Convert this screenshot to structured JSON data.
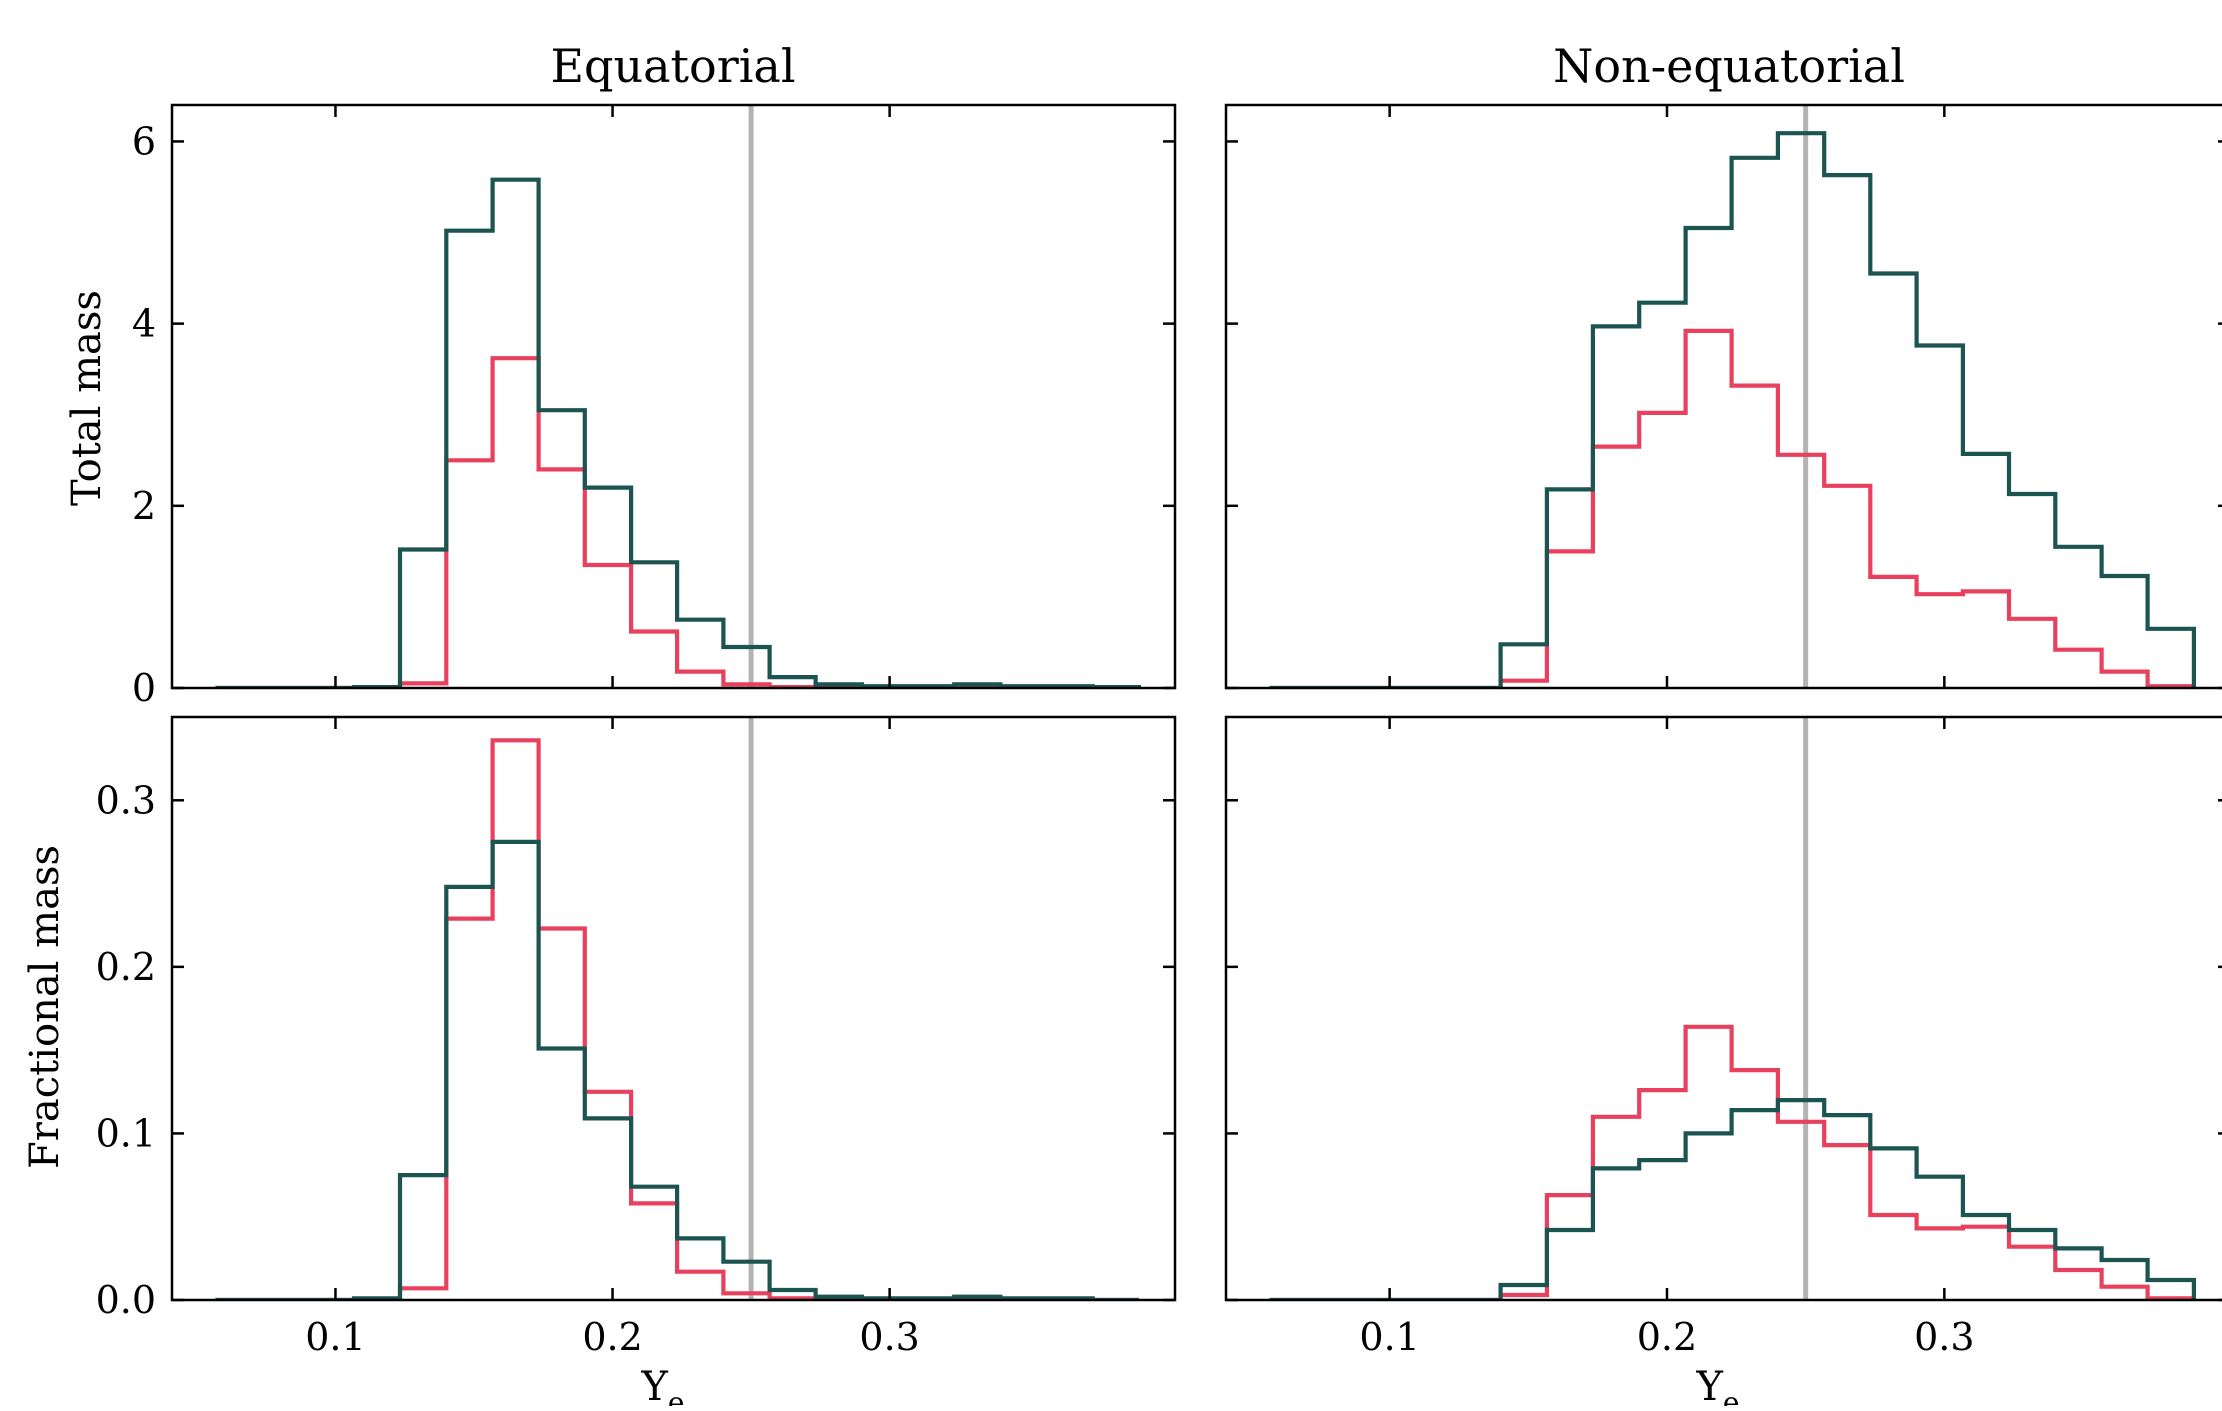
{
  "colors": {
    "series_a": "#e8405d",
    "series_b": "#1c5452",
    "reference_line": "#b3b3b3",
    "axes": "#000000"
  },
  "chart_data": [
    {
      "type": "step-histogram",
      "title": "Equatorial",
      "xlabel": "",
      "ylabel": "Total mass",
      "xlim": [
        0.041,
        0.403
      ],
      "ylim": [
        0,
        6.4
      ],
      "xticks": [
        0.1,
        0.2,
        0.3
      ],
      "yticks": [
        0,
        2,
        4,
        6
      ],
      "ytick_labels": [
        "0",
        "2",
        "4",
        "6"
      ],
      "vline_x": 0.25,
      "bin_edges": [
        0.0567,
        0.0733,
        0.09,
        0.1067,
        0.1233,
        0.14,
        0.1567,
        0.1733,
        0.19,
        0.2067,
        0.2233,
        0.24,
        0.2567,
        0.2733,
        0.29,
        0.3067,
        0.3233,
        0.34,
        0.3567,
        0.3733,
        0.39
      ],
      "series": [
        {
          "values": [
            0,
            0,
            0,
            0,
            0.05,
            2.5,
            3.62,
            2.4,
            1.35,
            0.62,
            0.18,
            0.04,
            0.01,
            0,
            0,
            0,
            0,
            0,
            0,
            0
          ]
        },
        {
          "values": [
            0,
            0,
            0,
            0.01,
            1.52,
            5.02,
            5.58,
            3.05,
            2.2,
            1.38,
            0.75,
            0.45,
            0.12,
            0.04,
            0.02,
            0.02,
            0.04,
            0.02,
            0.02,
            0.01
          ]
        }
      ]
    },
    {
      "type": "step-histogram",
      "title": "Non-equatorial",
      "xlabel": "",
      "ylabel": "",
      "xlim": [
        0.041,
        0.403
      ],
      "ylim": [
        0,
        6.4
      ],
      "xticks": [
        0.1,
        0.2,
        0.3
      ],
      "yticks": [
        0,
        2,
        4,
        6
      ],
      "vline_x": 0.25,
      "bin_edges": [
        0.0567,
        0.0733,
        0.09,
        0.1067,
        0.1233,
        0.14,
        0.1567,
        0.1733,
        0.19,
        0.2067,
        0.2233,
        0.24,
        0.2567,
        0.2733,
        0.29,
        0.3067,
        0.3233,
        0.34,
        0.3567,
        0.3733,
        0.39
      ],
      "series": [
        {
          "values": [
            0,
            0,
            0,
            0,
            0,
            0.08,
            1.5,
            2.65,
            3.02,
            3.92,
            3.32,
            2.56,
            2.22,
            1.22,
            1.03,
            1.06,
            0.76,
            0.42,
            0.18,
            0.02
          ]
        },
        {
          "values": [
            0,
            0,
            0,
            0,
            0,
            0.48,
            2.18,
            3.97,
            4.23,
            5.05,
            5.82,
            6.09,
            5.63,
            4.55,
            3.76,
            2.57,
            2.13,
            1.55,
            1.23,
            0.65
          ]
        }
      ]
    },
    {
      "type": "step-histogram",
      "title": "",
      "xlabel": "Ye",
      "ylabel": "Fractional mass",
      "xlim": [
        0.041,
        0.403
      ],
      "ylim": [
        0,
        0.35
      ],
      "xticks": [
        0.1,
        0.2,
        0.3
      ],
      "xtick_labels": [
        "0.1",
        "0.2",
        "0.3"
      ],
      "yticks": [
        0.0,
        0.1,
        0.2,
        0.3
      ],
      "ytick_labels": [
        "0.0",
        "0.1",
        "0.2",
        "0.3"
      ],
      "vline_x": 0.25,
      "bin_edges": [
        0.0567,
        0.0733,
        0.09,
        0.1067,
        0.1233,
        0.14,
        0.1567,
        0.1733,
        0.19,
        0.2067,
        0.2233,
        0.24,
        0.2567,
        0.2733,
        0.29,
        0.3067,
        0.3233,
        0.34,
        0.3567,
        0.3733,
        0.39
      ],
      "series": [
        {
          "values": [
            0,
            0,
            0,
            0,
            0.007,
            0.229,
            0.336,
            0.223,
            0.125,
            0.058,
            0.017,
            0.004,
            0.001,
            0,
            0,
            0,
            0,
            0,
            0,
            0
          ]
        },
        {
          "values": [
            0,
            0,
            0,
            0.001,
            0.075,
            0.248,
            0.275,
            0.151,
            0.109,
            0.068,
            0.037,
            0.023,
            0.006,
            0.002,
            0.001,
            0.001,
            0.002,
            0.001,
            0.001,
            0
          ]
        }
      ]
    },
    {
      "type": "step-histogram",
      "title": "",
      "xlabel": "Ye",
      "ylabel": "",
      "xlim": [
        0.041,
        0.403
      ],
      "ylim": [
        0,
        0.35
      ],
      "xticks": [
        0.1,
        0.2,
        0.3
      ],
      "xtick_labels": [
        "0.1",
        "0.2",
        "0.3"
      ],
      "yticks": [
        0.0,
        0.1,
        0.2,
        0.3
      ],
      "vline_x": 0.25,
      "bin_edges": [
        0.0567,
        0.0733,
        0.09,
        0.1067,
        0.1233,
        0.14,
        0.1567,
        0.1733,
        0.19,
        0.2067,
        0.2233,
        0.24,
        0.2567,
        0.2733,
        0.29,
        0.3067,
        0.3233,
        0.34,
        0.3567,
        0.3733,
        0.39
      ],
      "series": [
        {
          "values": [
            0,
            0,
            0,
            0,
            0,
            0.003,
            0.063,
            0.11,
            0.126,
            0.164,
            0.138,
            0.107,
            0.093,
            0.051,
            0.043,
            0.044,
            0.032,
            0.018,
            0.008,
            0.001
          ]
        },
        {
          "values": [
            0,
            0,
            0,
            0,
            0,
            0.009,
            0.042,
            0.079,
            0.084,
            0.1,
            0.114,
            0.12,
            0.111,
            0.091,
            0.074,
            0.051,
            0.042,
            0.031,
            0.024,
            0.012
          ]
        }
      ]
    }
  ]
}
